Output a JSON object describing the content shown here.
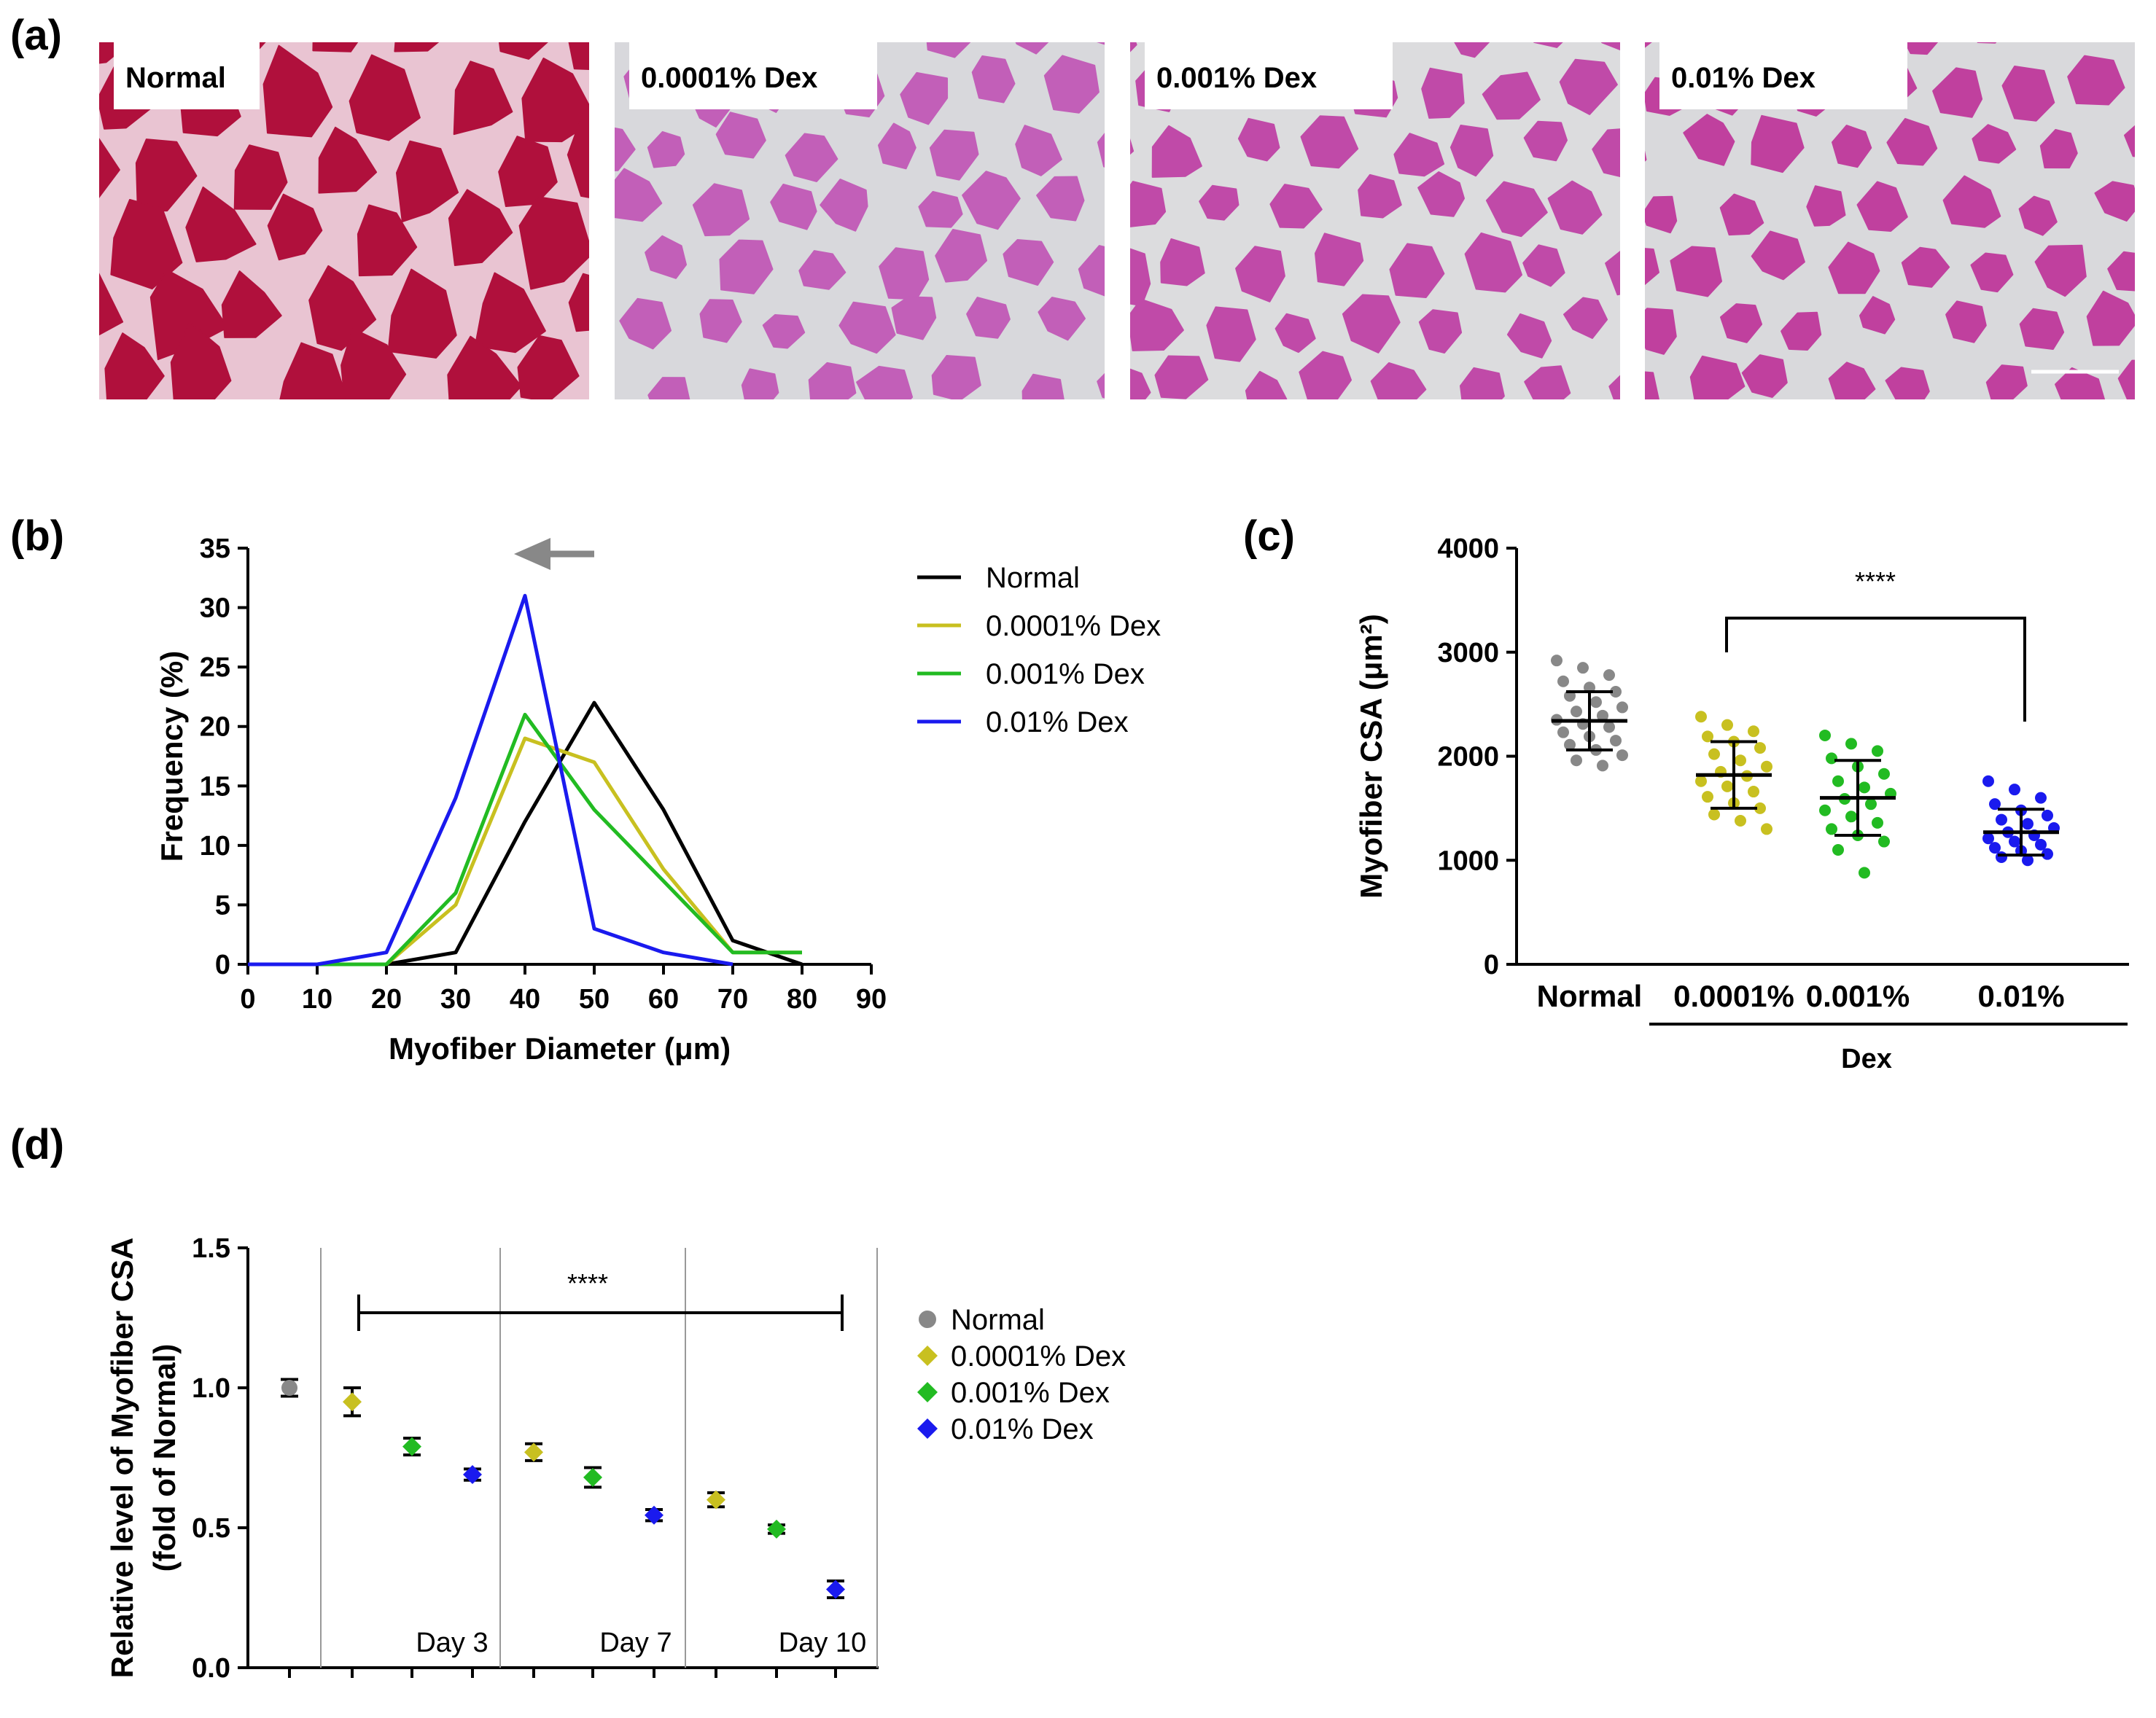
{
  "panel_a": {
    "letter": "(a)",
    "images": [
      {
        "label": "Normal",
        "tint": "#b0103c",
        "bg": "#e9c4d2"
      },
      {
        "label": "0.0001% Dex",
        "tint": "#c25fb8",
        "bg": "#d8d8dc"
      },
      {
        "label": "0.001% Dex",
        "tint": "#c04aa8",
        "bg": "#dcdcde"
      },
      {
        "label": "0.01% Dex",
        "tint": "#c0409e",
        "bg": "#d9d9dc"
      }
    ]
  },
  "chart_data": [
    {
      "panel": "(b)",
      "type": "line",
      "xlabel": "Myofiber Diameter (μm)",
      "ylabel": "Frequency (%)",
      "xlim": [
        0,
        90
      ],
      "ylim": [
        0,
        35
      ],
      "xticks": [
        "0",
        "10",
        "20",
        "30",
        "40",
        "50",
        "60",
        "70",
        "80",
        "90"
      ],
      "yticks": [
        "0",
        "5",
        "10",
        "15",
        "20",
        "25",
        "30",
        "35"
      ],
      "series": [
        {
          "name": "Normal",
          "color": "#000000",
          "x": [
            0,
            10,
            20,
            30,
            40,
            50,
            60,
            70,
            80
          ],
          "y": [
            0,
            0,
            0,
            1,
            12,
            22,
            13,
            2,
            0
          ]
        },
        {
          "name": "0.0001% Dex",
          "color": "#c8c020",
          "x": [
            10,
            20,
            30,
            40,
            50,
            60,
            70,
            80
          ],
          "y": [
            0,
            0,
            5,
            19,
            17,
            8,
            1,
            1
          ]
        },
        {
          "name": "0.001% Dex",
          "color": "#22bb22",
          "x": [
            10,
            20,
            30,
            40,
            50,
            60,
            70,
            80
          ],
          "y": [
            0,
            0,
            6,
            21,
            13,
            7,
            1,
            1
          ]
        },
        {
          "name": "0.01% Dex",
          "color": "#1a1aee",
          "x": [
            0,
            10,
            20,
            30,
            40,
            50,
            60,
            70
          ],
          "y": [
            0,
            0,
            1,
            14,
            31,
            3,
            1,
            0
          ]
        }
      ],
      "annotation": "left arrow indicating shift toward smaller diameters"
    },
    {
      "panel": "(c)",
      "type": "scatter",
      "ylabel": "Myofiber CSA (μm²)",
      "ylim": [
        0,
        4000
      ],
      "yticks": [
        "0",
        "1000",
        "2000",
        "3000",
        "4000"
      ],
      "categories": [
        "Normal",
        "0.0001%",
        "0.001%",
        "0.01%"
      ],
      "group_label": "Dex",
      "significance": "****",
      "groups": [
        {
          "name": "Normal",
          "color": "#888888",
          "mean": 2340,
          "sd": 280,
          "values": [
            2920,
            2850,
            2780,
            2720,
            2660,
            2620,
            2580,
            2520,
            2470,
            2430,
            2390,
            2350,
            2310,
            2280,
            2230,
            2190,
            2150,
            2110,
            2060,
            2010,
            1960,
            1910
          ]
        },
        {
          "name": "0.0001%",
          "color": "#c8c020",
          "mean": 1820,
          "sd": 320,
          "values": [
            2380,
            2300,
            2240,
            2190,
            2140,
            2080,
            2020,
            1960,
            1900,
            1850,
            1810,
            1760,
            1710,
            1660,
            1610,
            1550,
            1500,
            1440,
            1380,
            1300
          ]
        },
        {
          "name": "0.001%",
          "color": "#22bb22",
          "mean": 1600,
          "sd": 360,
          "values": [
            2200,
            2120,
            2050,
            1980,
            1900,
            1830,
            1760,
            1700,
            1640,
            1590,
            1540,
            1480,
            1420,
            1360,
            1300,
            1240,
            1180,
            1100,
            880
          ]
        },
        {
          "name": "0.01%",
          "color": "#1a1aee",
          "mean": 1270,
          "sd": 220,
          "values": [
            1760,
            1680,
            1600,
            1540,
            1480,
            1430,
            1390,
            1350,
            1310,
            1270,
            1240,
            1210,
            1180,
            1150,
            1120,
            1090,
            1060,
            1030,
            1000
          ]
        }
      ]
    },
    {
      "panel": "(d)",
      "type": "scatter",
      "ylabel_line1": "Relative level of Myofiber CSA",
      "ylabel_line2": "(fold of Normal)",
      "ylim": [
        0.0,
        1.5
      ],
      "yticks": [
        "0.0",
        "0.5",
        "1.0",
        "1.5"
      ],
      "significance": "****",
      "day_labels": [
        "Day 3",
        "Day 7",
        "Day 10"
      ],
      "legend": [
        "Normal",
        "0.0001% Dex",
        "0.001% Dex",
        "0.01% Dex"
      ],
      "points": [
        {
          "group": "Normal",
          "day": "",
          "value": 1.0,
          "err": 0.03,
          "color": "#888888",
          "marker": "circle"
        },
        {
          "group": "0.0001% Dex",
          "day": "Day 3",
          "value": 0.95,
          "err": 0.05,
          "color": "#c8c020",
          "marker": "diamond"
        },
        {
          "group": "0.001% Dex",
          "day": "Day 3",
          "value": 0.79,
          "err": 0.03,
          "color": "#22bb22",
          "marker": "diamond"
        },
        {
          "group": "0.01% Dex",
          "day": "Day 3",
          "value": 0.69,
          "err": 0.02,
          "color": "#1a1aee",
          "marker": "diamond"
        },
        {
          "group": "0.0001% Dex",
          "day": "Day 7",
          "value": 0.77,
          "err": 0.03,
          "color": "#c8c020",
          "marker": "diamond"
        },
        {
          "group": "0.001% Dex",
          "day": "Day 7",
          "value": 0.68,
          "err": 0.035,
          "color": "#22bb22",
          "marker": "diamond"
        },
        {
          "group": "0.01% Dex",
          "day": "Day 7",
          "value": 0.545,
          "err": 0.02,
          "color": "#1a1aee",
          "marker": "diamond"
        },
        {
          "group": "0.0001% Dex",
          "day": "Day 10",
          "value": 0.6,
          "err": 0.025,
          "color": "#c8c020",
          "marker": "diamond"
        },
        {
          "group": "0.001% Dex",
          "day": "Day 10",
          "value": 0.495,
          "err": 0.015,
          "color": "#22bb22",
          "marker": "diamond"
        },
        {
          "group": "0.01% Dex",
          "day": "Day 10",
          "value": 0.28,
          "err": 0.03,
          "color": "#1a1aee",
          "marker": "diamond"
        }
      ]
    }
  ],
  "panel_b_letter": "(b)",
  "panel_c_letter": "(c)",
  "panel_d_letter": "(d)"
}
